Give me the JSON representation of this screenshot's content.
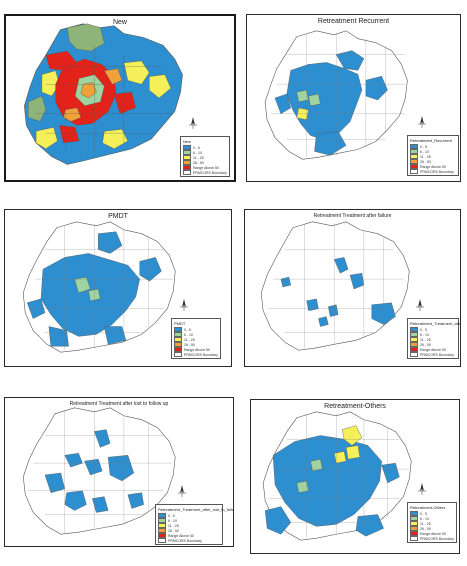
{
  "colors": {
    "blue": "#2e8fd0",
    "light_green": "#9fd3a0",
    "olive_green": "#8eb47a",
    "yellow": "#f5f05a",
    "orange": "#f0a13a",
    "red": "#e2231a",
    "outline": "#555555",
    "white": "#ffffff"
  },
  "panels": [
    {
      "title": "New",
      "legend_title": "New"
    },
    {
      "title": "Retreatment Recurrent",
      "legend_title": "Retreatment_Recurrent"
    },
    {
      "title": "PMDT",
      "legend_title": "PMDT"
    },
    {
      "title": "Retreatment Treatment after failure",
      "legend_title": "Retreatment_Treatment_after_failure"
    },
    {
      "title": "Retreatment Treatment after lost to follow up",
      "legend_title": "Retreatment_Treatment_after_lost_to_follow_up"
    },
    {
      "title": "Retreatment-Others",
      "legend_title": "Retreatment-Others"
    }
  ],
  "legend_classes": [
    "0 - 5",
    "6 - 10",
    "11 - 25",
    "26 - 50",
    "Range Above 50",
    "PRMCORS Boundary"
  ],
  "north_label": "N"
}
